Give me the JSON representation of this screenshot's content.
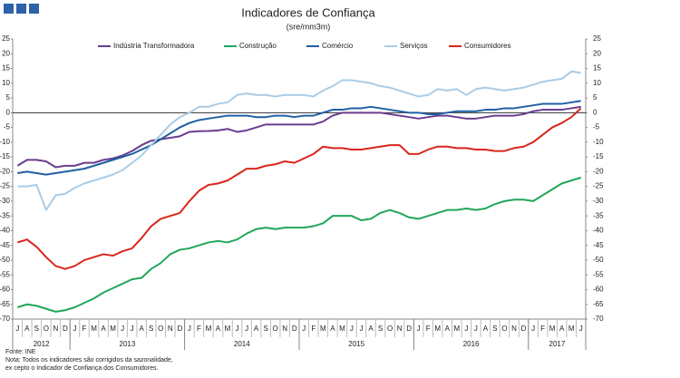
{
  "chart_data": {
    "type": "line",
    "title": "Indicadores de Confiança",
    "subtitle": "(sre/mm3m)",
    "categories": [
      "J",
      "A",
      "S",
      "O",
      "N",
      "D",
      "J",
      "F",
      "M",
      "A",
      "M",
      "J",
      "J",
      "A",
      "S",
      "O",
      "N",
      "D",
      "J",
      "F",
      "M",
      "A",
      "M",
      "J",
      "J",
      "A",
      "S",
      "O",
      "N",
      "D",
      "J",
      "F",
      "M",
      "A",
      "M",
      "J",
      "J",
      "A",
      "S",
      "O",
      "N",
      "D",
      "J",
      "F",
      "M",
      "A",
      "M",
      "J",
      "J",
      "A",
      "S",
      "O",
      "N",
      "D",
      "J",
      "F",
      "M",
      "A",
      "M",
      "J"
    ],
    "years": [
      "2012",
      "2013",
      "2014",
      "2015",
      "2016",
      "2017"
    ],
    "year_months": [
      6,
      12,
      12,
      12,
      12,
      6
    ],
    "ylim": [
      -70,
      25
    ],
    "yticks": [
      25,
      20,
      15,
      10,
      5,
      0,
      -5,
      -10,
      -15,
      -20,
      -25,
      -30,
      -35,
      -40,
      -45,
      -50,
      -55,
      -60,
      -65,
      -70
    ],
    "y2lim": [
      -70,
      25
    ],
    "y2ticks": [
      25,
      20,
      15,
      10,
      5,
      0,
      -5,
      -10,
      -15,
      -20,
      -25,
      -30,
      -35,
      -40,
      -45,
      -50,
      -55,
      -60,
      -65,
      -70
    ],
    "grid": false,
    "legend": "top",
    "series": [
      {
        "name": "Indústria Transformadora",
        "color": "#6a3d8f",
        "values": [
          -18,
          -16,
          -16,
          -16.5,
          -18.5,
          -18,
          -18,
          -17,
          -17,
          -16,
          -15.5,
          -14.5,
          -13,
          -11,
          -9.5,
          -9,
          -8.5,
          -8,
          -6.5,
          -6.3,
          -6.2,
          -6,
          -5.5,
          -6.5,
          -6,
          -5,
          -4,
          -4,
          -4,
          -4,
          -4,
          -4,
          -3,
          -1,
          0,
          0,
          0,
          0,
          0,
          -0.5,
          -1,
          -1.5,
          -2,
          -1.5,
          -1,
          -1,
          -1.5,
          -2,
          -2,
          -1.5,
          -1,
          -1,
          -1,
          -0.5,
          0.5,
          1,
          1,
          1,
          1.5,
          2
        ]
      },
      {
        "name": "Construção",
        "color": "#22a65b",
        "values": [
          -66,
          -65,
          -65.5,
          -66.5,
          -67.5,
          -67,
          -66,
          -64.5,
          -63,
          -61,
          -59.5,
          -58,
          -56.5,
          -56,
          -53,
          -51,
          -48,
          -46.5,
          -46,
          -45,
          -44,
          -43.5,
          -44,
          -43,
          -41,
          -39.5,
          -39,
          -39.5,
          -39,
          -39,
          -39,
          -38.5,
          -37.5,
          -35,
          -35,
          -35,
          -36.5,
          -36,
          -34,
          -33,
          -34,
          -35.5,
          -36,
          -35,
          -34,
          -33,
          -33,
          -32.5,
          -33,
          -32.5,
          -31,
          -30,
          -29.5,
          -29.5,
          -30,
          -28,
          -26,
          -24,
          -23,
          -22
        ]
      },
      {
        "name": "Comércio",
        "color": "#1f5fa3",
        "values": [
          -20.5,
          -20,
          -20.5,
          -21,
          -20.5,
          -20,
          -19.5,
          -19,
          -18,
          -17,
          -16,
          -15,
          -14,
          -12.5,
          -11,
          -9,
          -7,
          -5,
          -3.5,
          -2.5,
          -2,
          -1.5,
          -1,
          -1,
          -1,
          -1.5,
          -1.5,
          -1,
          -1,
          -1.5,
          -1,
          -1,
          0,
          1,
          1,
          1.5,
          1.5,
          2,
          1.5,
          1,
          0.5,
          0,
          0,
          -0.5,
          -0.5,
          0,
          0.5,
          0.5,
          0.5,
          1,
          1,
          1.5,
          1.5,
          2,
          2.5,
          3,
          3,
          3,
          3.5,
          4
        ]
      },
      {
        "name": "Serviços",
        "color": "#a9cce6",
        "values": [
          -25,
          -25,
          -24.5,
          -33,
          -28,
          -27.5,
          -25.5,
          -24,
          -23,
          -22,
          -21,
          -19.5,
          -17,
          -14.5,
          -11,
          -7.5,
          -4,
          -1.5,
          0,
          2,
          2,
          3,
          3.5,
          6,
          6.5,
          6,
          6,
          5.5,
          6,
          6,
          6,
          5.5,
          7.5,
          9,
          11,
          11,
          10.5,
          10,
          9,
          8.5,
          7.5,
          6.5,
          5.5,
          6,
          8,
          7.5,
          8,
          6,
          8,
          8.5,
          8,
          7.5,
          8,
          8.5,
          9.5,
          10.5,
          11,
          11.5,
          14,
          13.5
        ]
      },
      {
        "name": "Consumidores",
        "color": "#d9261c",
        "values": [
          -44,
          -43,
          -45.5,
          -49,
          -52,
          -53,
          -52,
          -50,
          -49,
          -48,
          -48.5,
          -47,
          -46,
          -42.5,
          -38.5,
          -36,
          -35,
          -34,
          -30,
          -26.5,
          -24.5,
          -24,
          -23,
          -21,
          -19,
          -19,
          -18,
          -17.5,
          -16.5,
          -17,
          -15.5,
          -14,
          -11.5,
          -12,
          -12,
          -12.5,
          -12.5,
          -12,
          -11.5,
          -11,
          -11,
          -14,
          -14,
          -12.5,
          -11.5,
          -11.5,
          -12,
          -12,
          -12.5,
          -12.5,
          -13,
          -13,
          -12,
          -11.5,
          -10,
          -7.5,
          -5,
          -3.5,
          -1.5,
          1.5
        ]
      }
    ],
    "notes": [
      "Fonte: INE",
      "Nota: Todos os indicadores são corrigidos da sazonalidade,",
      "ex cepto o Indicador de Confiança dos Consumidores."
    ]
  }
}
